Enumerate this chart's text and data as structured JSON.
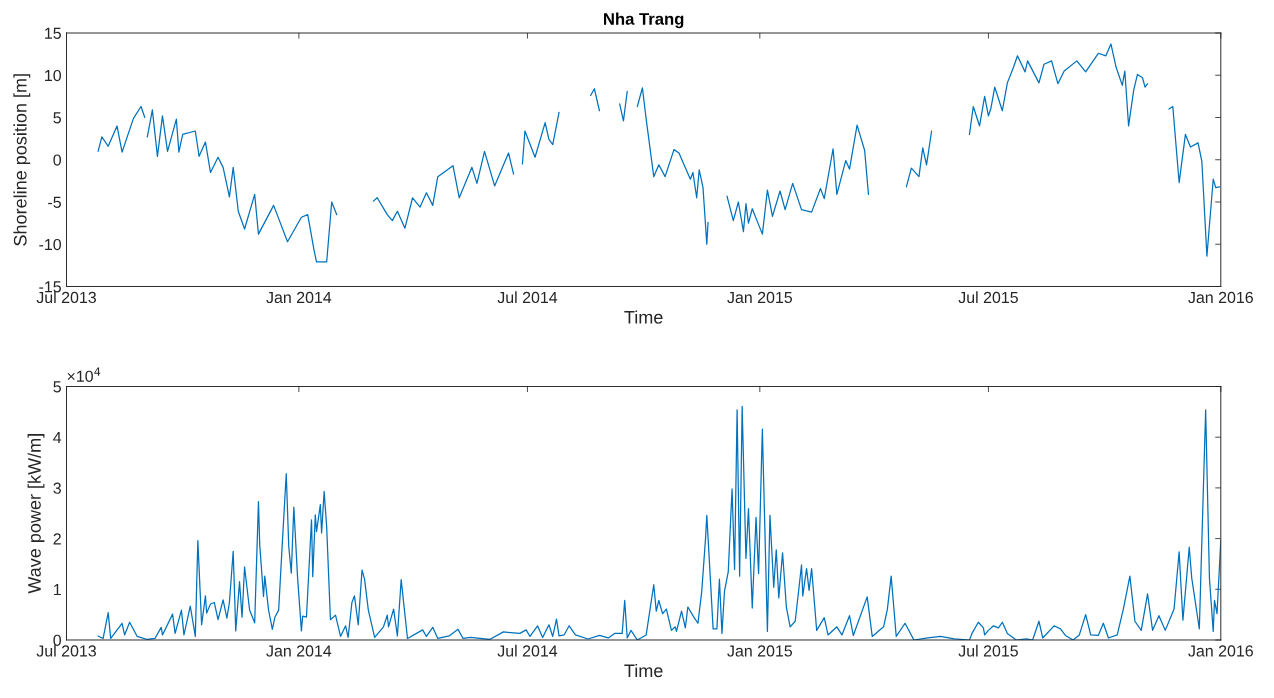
{
  "chart_data": [
    {
      "type": "line",
      "title": "Nha Trang",
      "xlabel": "Time",
      "ylabel": "Shoreline position [m]",
      "xlim": [
        "2013-07-01",
        "2016-01-01"
      ],
      "xticks": [
        {
          "value": "2013-07-01",
          "label": "Jul 2013"
        },
        {
          "value": "2014-01-01",
          "label": "Jan 2014"
        },
        {
          "value": "2014-07-01",
          "label": "Jul 2014"
        },
        {
          "value": "2015-01-01",
          "label": "Jan 2015"
        },
        {
          "value": "2015-07-01",
          "label": "Jul 2015"
        },
        {
          "value": "2016-01-01",
          "label": "Jan 2016"
        }
      ],
      "ylim": [
        -15,
        15
      ],
      "yticks": [
        -15,
        -10,
        -5,
        0,
        5,
        10,
        15
      ],
      "series": [
        {
          "color": "#0072bd",
          "x": [
            "2013-07-26",
            "2013-07-29",
            "2013-08-03",
            "2013-08-10",
            "2013-08-14",
            "2013-08-23",
            "2013-08-29",
            "2013-09-01",
            "2013-09-02",
            "2013-09-03",
            "2013-09-07",
            "2013-09-11",
            "2013-09-15",
            "2013-09-19",
            "2013-09-26",
            "2013-09-28",
            "2013-10-01",
            "2013-10-11",
            "2013-10-14",
            "2013-10-19",
            "2013-10-23",
            "2013-10-29",
            "2013-11-02",
            "2013-11-07",
            "2013-11-10",
            "2013-11-14",
            "2013-11-19",
            "2013-11-27",
            "2013-11-30",
            "2013-12-12",
            "2013-12-23",
            "2014-01-03",
            "2014-01-08",
            "2014-01-13",
            "2014-01-15",
            "2014-01-23",
            "2014-01-27",
            "2014-01-31",
            "2014-02-15",
            "2014-03-01",
            "2014-03-04",
            "2014-03-12",
            "2014-03-16",
            "2014-03-20",
            "2014-03-26",
            "2014-04-01",
            "2014-04-07",
            "2014-04-12",
            "2014-04-17",
            "2014-04-21",
            "2014-05-03",
            "2014-05-08",
            "2014-05-18",
            "2014-05-22",
            "2014-05-28",
            "2014-06-05",
            "2014-06-16",
            "2014-06-20",
            "2014-06-23",
            "2014-06-27",
            "2014-06-29",
            "2014-07-07",
            "2014-07-15",
            "2014-07-18",
            "2014-07-21",
            "2014-07-26",
            "2014-08-10",
            "2014-08-20",
            "2014-08-23",
            "2014-08-27",
            "2014-09-05",
            "2014-09-12",
            "2014-09-15",
            "2014-09-18",
            "2014-09-22",
            "2014-09-26",
            "2014-09-30",
            "2014-10-03",
            "2014-10-09",
            "2014-10-13",
            "2014-10-18",
            "2014-10-25",
            "2014-10-29",
            "2014-10-31",
            "2014-11-07",
            "2014-11-09",
            "2014-11-12",
            "2014-11-14",
            "2014-11-17",
            "2014-11-20",
            "2014-11-21",
            "2014-12-01",
            "2014-12-06",
            "2014-12-11",
            "2014-12-15",
            "2014-12-19",
            "2014-12-21",
            "2014-12-23",
            "2014-12-26",
            "2015-01-03",
            "2015-01-07",
            "2015-01-11",
            "2015-01-17",
            "2015-01-21",
            "2015-01-27",
            "2015-02-03",
            "2015-02-11",
            "2015-02-18",
            "2015-02-21",
            "2015-02-28",
            "2015-03-03",
            "2015-03-10",
            "2015-03-13",
            "2015-03-19",
            "2015-03-25",
            "2015-03-28",
            "2015-04-15",
            "2015-04-27",
            "2015-05-01",
            "2015-05-07",
            "2015-05-10",
            "2015-05-13",
            "2015-05-17",
            "2015-06-01",
            "2015-06-16",
            "2015-06-19",
            "2015-06-24",
            "2015-06-28",
            "2015-07-01",
            "2015-07-03",
            "2015-07-06",
            "2015-07-12",
            "2015-07-16",
            "2015-07-21",
            "2015-07-24",
            "2015-07-30",
            "2015-08-01",
            "2015-08-10",
            "2015-08-14",
            "2015-08-20",
            "2015-08-25",
            "2015-08-30",
            "2015-09-09",
            "2015-09-16",
            "2015-09-26",
            "2015-10-02",
            "2015-10-06",
            "2015-10-10",
            "2015-10-15",
            "2015-10-17",
            "2015-10-20",
            "2015-10-24",
            "2015-10-27",
            "2015-10-31",
            "2015-11-02",
            "2015-11-04",
            "2015-11-12",
            "2015-11-21",
            "2015-11-24",
            "2015-11-29",
            "2015-12-04",
            "2015-12-08",
            "2015-12-14",
            "2015-12-17",
            "2015-12-21",
            "2015-12-26",
            "2015-12-28",
            "2015-12-31"
          ],
          "values": [
            1.0,
            2.7,
            1.6,
            4.0,
            0.9,
            4.9,
            6.3,
            5.0,
            null,
            2.7,
            5.9,
            0.4,
            5.2,
            1.0,
            4.8,
            0.9,
            3.0,
            3.4,
            0.4,
            2.1,
            -1.5,
            0.3,
            -0.9,
            -4.4,
            -0.9,
            -6.1,
            -8.2,
            -4.1,
            -8.8,
            -5.4,
            -9.7,
            -6.8,
            -6.5,
            -10.7,
            -12.1,
            -12.1,
            -5.0,
            -6.5,
            null,
            -4.9,
            -4.5,
            -6.5,
            -7.2,
            -6.1,
            -8.1,
            -4.5,
            -5.6,
            -3.9,
            -5.4,
            -2.0,
            -0.7,
            -4.5,
            -0.9,
            -2.8,
            1.0,
            -3.1,
            0.8,
            -1.7,
            null,
            -0.5,
            3.4,
            0.3,
            4.4,
            2.4,
            1.8,
            5.6,
            null,
            7.6,
            8.4,
            5.8,
            null,
            6.6,
            4.6,
            8.1,
            null,
            6.3,
            8.5,
            4.8,
            -2.0,
            -0.6,
            -2.0,
            1.2,
            0.8,
            0.1,
            -2.3,
            -1.5,
            -4.5,
            -1.2,
            -3.3,
            -10.0,
            -7.4,
            null,
            -4.3,
            -7.2,
            -5.0,
            -8.5,
            -5.2,
            -7.5,
            -5.8,
            -8.8,
            -3.6,
            -6.7,
            -3.7,
            -5.9,
            -2.8,
            -5.9,
            -6.2,
            -3.4,
            -4.6,
            1.3,
            -4.1,
            -0.1,
            -1.1,
            4.1,
            1.1,
            -4.1,
            null,
            -3.2,
            -1.0,
            -2.0,
            1.4,
            -0.6,
            3.4,
            null,
            3.0,
            6.3,
            4.0,
            7.5,
            5.2,
            6.1,
            8.6,
            5.8,
            9.1,
            11.0,
            12.3,
            10.4,
            11.7,
            9.1,
            11.3,
            11.7,
            9.0,
            10.5,
            11.7,
            10.4,
            12.6,
            12.3,
            13.7,
            11.0,
            8.8,
            10.5,
            4.0,
            8.2,
            10.1,
            9.7,
            8.6,
            9.0,
            null,
            6.0,
            6.3,
            -2.7,
            3.0,
            1.5,
            2.0,
            -0.2,
            -11.4,
            -2.3,
            -3.3,
            -3.2
          ]
        }
      ]
    },
    {
      "type": "line",
      "xlabel": "Time",
      "ylabel": "Wave power [kW/m]",
      "annotations": [
        "×10$^{4}$"
      ],
      "xlim": [
        "2013-07-01",
        "2016-01-01"
      ],
      "xticks": [
        {
          "value": "2013-07-01",
          "label": "Jul 2013"
        },
        {
          "value": "2014-01-01",
          "label": "Jan 2014"
        },
        {
          "value": "2014-07-01",
          "label": "Jul 2014"
        },
        {
          "value": "2015-01-01",
          "label": "Jan 2015"
        },
        {
          "value": "2015-07-01",
          "label": "Jul 2015"
        },
        {
          "value": "2016-01-01",
          "label": "Jan 2016"
        }
      ],
      "ylim": [
        0,
        5
      ],
      "yticks": [
        0,
        1,
        2,
        3,
        4,
        5
      ],
      "series": [
        {
          "color": "#0072bd",
          "x": [
            "2013-07-26",
            "2013-07-30",
            "2013-08-03",
            "2013-08-05",
            "2013-08-14",
            "2013-08-16",
            "2013-08-20",
            "2013-08-26",
            "2013-09-03",
            "2013-09-09",
            "2013-09-14",
            "2013-09-15",
            "2013-09-23",
            "2013-09-25",
            "2013-09-30",
            "2013-10-02",
            "2013-10-07",
            "2013-10-11",
            "2013-10-13",
            "2013-10-16",
            "2013-10-19",
            "2013-10-20",
            "2013-10-23",
            "2013-10-26",
            "2013-10-29",
            "2013-11-02",
            "2013-11-05",
            "2013-11-07",
            "2013-11-10",
            "2013-11-12",
            "2013-11-15",
            "2013-11-17",
            "2013-11-19",
            "2013-11-23",
            "2013-11-27",
            "2013-11-30",
            "2013-12-01",
            "2013-12-04",
            "2013-12-05",
            "2013-12-08",
            "2013-12-11",
            "2013-12-13",
            "2013-12-16",
            "2013-12-19",
            "2013-12-22",
            "2013-12-24",
            "2013-12-26",
            "2013-12-28",
            "2013-12-31",
            "2014-01-03",
            "2014-01-04",
            "2014-01-07",
            "2014-01-11",
            "2014-01-12",
            "2014-01-14",
            "2014-01-15",
            "2014-01-18",
            "2014-01-19",
            "2014-01-21",
            "2014-01-23",
            "2014-01-26",
            "2014-01-30",
            "2014-02-03",
            "2014-02-07",
            "2014-02-09",
            "2014-02-12",
            "2014-02-14",
            "2014-02-17",
            "2014-02-20",
            "2014-02-22",
            "2014-02-25",
            "2014-03-02",
            "2014-03-09",
            "2014-03-12",
            "2014-03-13",
            "2014-03-17",
            "2014-03-20",
            "2014-03-23",
            "2014-03-28",
            "2014-04-09",
            "2014-04-12",
            "2014-04-17",
            "2014-04-21",
            "2014-04-30",
            "2014-05-07",
            "2014-05-11",
            "2014-05-17",
            "2014-06-01",
            "2014-06-12",
            "2014-06-20",
            "2014-06-25",
            "2014-06-30",
            "2014-07-03",
            "2014-07-09",
            "2014-07-13",
            "2014-07-18",
            "2014-07-21",
            "2014-07-24",
            "2014-07-26",
            "2014-07-30",
            "2014-08-03",
            "2014-08-08",
            "2014-08-18",
            "2014-08-27",
            "2014-09-03",
            "2014-09-08",
            "2014-09-14",
            "2014-09-16",
            "2014-09-18",
            "2014-09-21",
            "2014-09-26",
            "2014-10-03",
            "2014-10-09",
            "2014-10-11",
            "2014-10-13",
            "2014-10-16",
            "2014-10-19",
            "2014-10-23",
            "2014-10-26",
            "2014-10-27",
            "2014-10-31",
            "2014-11-03",
            "2014-11-05",
            "2014-11-10",
            "2014-11-13",
            "2014-11-16",
            "2014-11-19",
            "2014-11-20",
            "2014-11-23",
            "2014-11-25",
            "2014-11-28",
            "2014-11-30",
            "2014-12-02",
            "2014-12-04",
            "2014-12-07",
            "2014-12-10",
            "2014-12-12",
            "2014-12-14",
            "2014-12-16",
            "2014-12-18",
            "2014-12-21",
            "2014-12-23",
            "2014-12-26",
            "2014-12-29",
            "2014-12-31",
            "2015-01-03",
            "2015-01-07",
            "2015-01-09",
            "2015-01-12",
            "2015-01-14",
            "2015-01-16",
            "2015-01-19",
            "2015-01-22",
            "2015-01-25",
            "2015-01-29",
            "2015-02-03",
            "2015-02-04",
            "2015-02-07",
            "2015-02-09",
            "2015-02-11",
            "2015-02-15",
            "2015-02-21",
            "2015-02-24",
            "2015-03-03",
            "2015-03-07",
            "2015-03-13",
            "2015-03-16",
            "2015-03-27",
            "2015-03-31",
            "2015-04-09",
            "2015-04-12",
            "2015-04-15",
            "2015-04-19",
            "2015-04-26",
            "2015-05-03",
            "2015-05-14",
            "2015-05-24",
            "2015-06-04",
            "2015-06-16",
            "2015-06-18",
            "2015-06-23",
            "2015-06-27",
            "2015-06-28",
            "2015-07-01",
            "2015-07-05",
            "2015-07-09",
            "2015-07-12",
            "2015-07-16",
            "2015-07-23",
            "2015-07-31",
            "2015-08-05",
            "2015-08-10",
            "2015-08-13",
            "2015-08-22",
            "2015-08-27",
            "2015-08-31",
            "2015-09-06",
            "2015-09-11",
            "2015-09-16",
            "2015-09-20",
            "2015-09-26",
            "2015-09-30",
            "2015-10-04",
            "2015-10-11",
            "2015-10-16",
            "2015-10-21",
            "2015-10-25",
            "2015-10-30",
            "2015-11-04",
            "2015-11-08",
            "2015-11-13",
            "2015-11-18",
            "2015-11-25",
            "2015-11-29",
            "2015-12-02",
            "2015-12-07",
            "2015-12-09",
            "2015-12-15",
            "2015-12-20",
            "2015-12-23",
            "2015-12-26",
            "2015-12-27",
            "2015-12-29",
            "2016-01-01"
          ],
          "values": [
            0.08,
            0.03,
            0.54,
            0.03,
            0.33,
            0.1,
            0.35,
            0.07,
            0.01,
            0.03,
            0.25,
            0.1,
            0.51,
            0.13,
            0.59,
            0.1,
            0.67,
            0.07,
            1.96,
            0.3,
            0.87,
            0.53,
            0.71,
            0.74,
            0.4,
            0.79,
            0.43,
            0.74,
            1.75,
            0.18,
            1.15,
            0.45,
            1.44,
            0.59,
            0.34,
            2.73,
            1.88,
            0.86,
            1.26,
            0.59,
            0.21,
            0.45,
            0.59,
            1.96,
            3.28,
            1.84,
            1.32,
            2.62,
            1.22,
            0.18,
            0.47,
            0.45,
            2.37,
            1.25,
            2.47,
            2.14,
            2.67,
            2.11,
            2.93,
            2.24,
            0.4,
            0.49,
            0.07,
            0.28,
            0.05,
            0.74,
            0.87,
            0.3,
            1.38,
            1.2,
            0.59,
            0.05,
            0.26,
            0.49,
            0.26,
            0.61,
            0.08,
            1.19,
            0.03,
            0.2,
            0.07,
            0.25,
            0.03,
            0.08,
            0.21,
            0.03,
            0.05,
            0.01,
            0.16,
            0.14,
            0.13,
            0.2,
            0.07,
            0.28,
            0.05,
            0.3,
            0.07,
            0.41,
            0.08,
            0.1,
            0.28,
            0.1,
            0.02,
            0.09,
            0.04,
            0.13,
            0.13,
            0.78,
            0.04,
            0.19,
            0.0,
            0.1,
            1.09,
            0.57,
            0.78,
            0.52,
            0.61,
            0.19,
            0.26,
            0.17,
            0.57,
            0.24,
            0.65,
            0.44,
            0.33,
            0.96,
            2.0,
            2.46,
            1.13,
            0.22,
            0.22,
            1.2,
            0.13,
            0.96,
            1.35,
            2.98,
            1.39,
            4.54,
            1.26,
            4.61,
            1.61,
            2.59,
            0.63,
            2.42,
            1.31,
            4.16,
            0.17,
            2.46,
            1.04,
            1.78,
            0.83,
            1.72,
            0.65,
            0.26,
            0.37,
            1.48,
            0.87,
            1.41,
            0.98,
            1.41,
            0.19,
            0.44,
            0.1,
            0.26,
            0.1,
            0.48,
            0.09,
            0.85,
            0.07,
            0.26,
            0.61,
            1.26,
            0.07,
            0.33,
            0.0,
            0.04,
            0.07,
            0.02,
            0.0,
            0.13,
            0.35,
            0.24,
            0.1,
            0.19,
            0.28,
            0.24,
            0.35,
            0.13,
            0.0,
            0.02,
            0.0,
            0.37,
            0.04,
            0.28,
            0.22,
            0.09,
            0.0,
            0.1,
            0.5,
            0.1,
            0.09,
            0.33,
            0.04,
            0.1,
            0.63,
            1.26,
            0.37,
            0.19,
            0.91,
            0.19,
            0.48,
            0.19,
            0.61,
            1.74,
            0.39,
            1.83,
            1.22,
            0.22,
            4.54,
            1.22,
            0.17,
            0.78,
            0.52,
            1.96
          ]
        }
      ]
    }
  ]
}
